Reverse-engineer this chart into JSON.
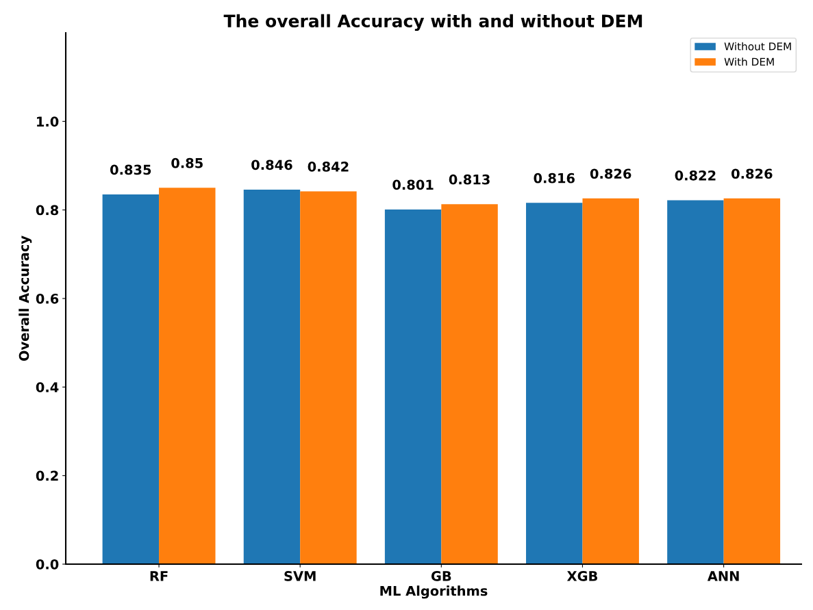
{
  "chart_data": {
    "type": "bar",
    "title": "The overall Accuracy with and without DEM",
    "xlabel": "ML Algorithms",
    "ylabel": "Overall Accuracy",
    "categories": [
      "RF",
      "SVM",
      "GB",
      "XGB",
      "ANN"
    ],
    "series": [
      {
        "name": "Without DEM",
        "color": "#1f77b4",
        "values": [
          0.835,
          0.846,
          0.801,
          0.816,
          0.822
        ]
      },
      {
        "name": "With DEM",
        "color": "#ff7f0e",
        "values": [
          0.85,
          0.842,
          0.813,
          0.826,
          0.826
        ]
      }
    ],
    "ylim": [
      0,
      1.2
    ],
    "yticks": [
      {
        "value": 0,
        "label": "0.0"
      },
      0.2,
      0.4,
      0.6,
      0.8,
      {
        "value": 1,
        "label": "1.0"
      }
    ],
    "data_labels": true,
    "legend": "top right",
    "grid": false
  }
}
